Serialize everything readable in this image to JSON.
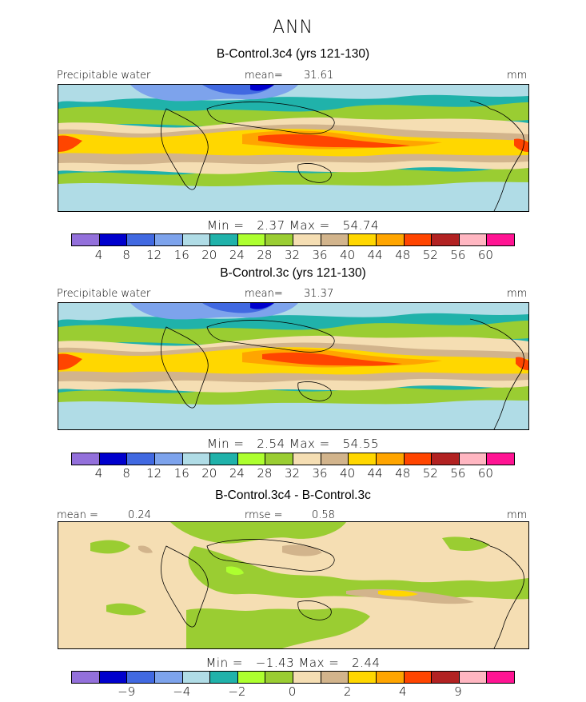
{
  "figure": {
    "title": "ANN"
  },
  "palette": [
    "#9370DB",
    "#0000CD",
    "#4169E1",
    "#7DA3EC",
    "#B0DCE6",
    "#20B2AA",
    "#ADFF2F",
    "#9ACD32",
    "#F5DEB3",
    "#D2B48C",
    "#FFD700",
    "#FFA500",
    "#FF4500",
    "#B22222",
    "#FFB6C1",
    "#FF1493"
  ],
  "panels": [
    {
      "title": "B-Control.3c4 (yrs 121-130)",
      "left_label": "Precipitable water",
      "mean_label": "mean=",
      "mean_value": "31.61",
      "unit": "mm",
      "min_label": "Min =",
      "min_value": "2.37",
      "max_label": "Max =",
      "max_value": "54.74",
      "ticks": [
        "4",
        "8",
        "12",
        "16",
        "20",
        "24",
        "28",
        "32",
        "36",
        "40",
        "44",
        "48",
        "52",
        "56",
        "60"
      ]
    },
    {
      "title": "B-Control.3c (yrs 121-130)",
      "left_label": "Precipitable water",
      "mean_label": "mean=",
      "mean_value": "31.37",
      "unit": "mm",
      "min_label": "Min =",
      "min_value": "2.54",
      "max_label": "Max =",
      "max_value": "54.55",
      "ticks": [
        "4",
        "8",
        "12",
        "16",
        "20",
        "24",
        "28",
        "32",
        "36",
        "40",
        "44",
        "48",
        "52",
        "56",
        "60"
      ]
    },
    {
      "title": "B-Control.3c4 - B-Control.3c",
      "left_label": "mean =",
      "left_value": "0.24",
      "rmse_label": "rmse =",
      "rmse_value": "0.58",
      "unit": "mm",
      "min_label": "Min =",
      "min_value": "−1.43",
      "max_label": "Max =",
      "max_value": "2.44",
      "ticks": [
        "−9",
        "−4",
        "−2",
        "0",
        "2",
        "4",
        "9"
      ]
    }
  ]
}
